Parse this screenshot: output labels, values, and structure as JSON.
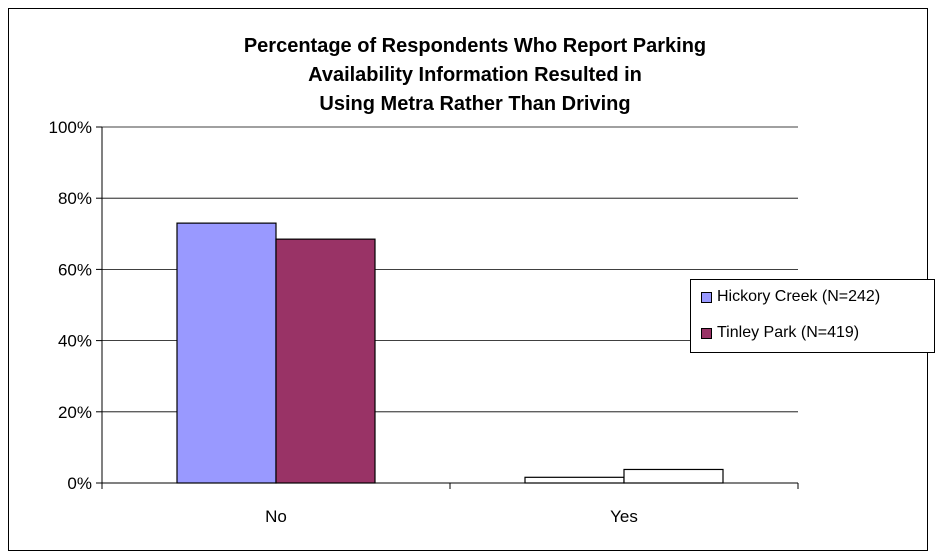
{
  "chart_data": {
    "type": "bar",
    "title_lines": [
      "Percentage of Respondents Who Report Parking",
      "Availability Information Resulted in",
      "Using Metra Rather Than Driving"
    ],
    "categories": [
      "No",
      "Yes"
    ],
    "series": [
      {
        "name": "Hickory Creek (N=242)",
        "values": [
          73.0,
          1.6
        ],
        "colors": [
          "#9999ff",
          "#ffffff"
        ]
      },
      {
        "name": "Tinley Park (N=419)",
        "values": [
          68.5,
          3.8
        ],
        "colors": [
          "#993366",
          "#ffffff"
        ]
      }
    ],
    "y_ticks": [
      "0%",
      "20%",
      "40%",
      "60%",
      "80%",
      "100%"
    ],
    "ylim": [
      0,
      100
    ],
    "grid": true,
    "legend_position": "right"
  },
  "legend": {
    "items": [
      {
        "label": "Hickory Creek (N=242)",
        "color": "#9999ff"
      },
      {
        "label": "Tinley Park (N=419)",
        "color": "#993366"
      }
    ]
  }
}
